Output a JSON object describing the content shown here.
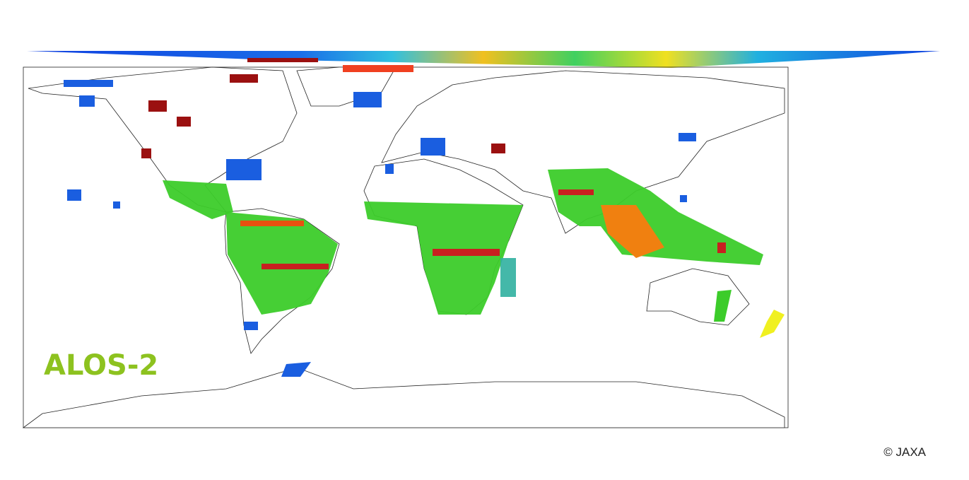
{
  "logo": {
    "text": "ALOS-2"
  },
  "credit": "© JAXA"
}
